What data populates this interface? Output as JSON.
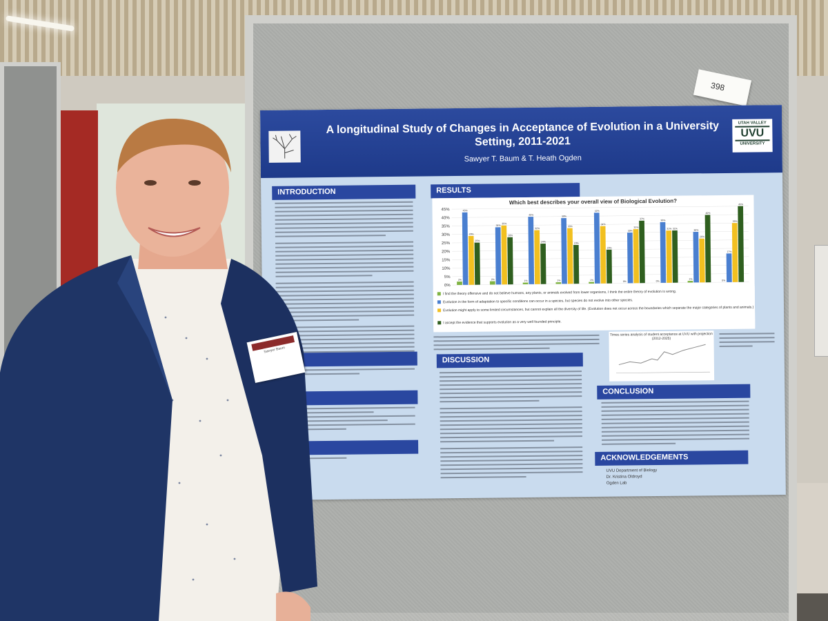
{
  "scene": {
    "description_tag_number": "398"
  },
  "poster": {
    "title": "A longitudinal Study of Changes in Acceptance of Evolution in a University Setting, 2011-2021",
    "authors": "Sawyer T. Baum & T. Heath Ogden",
    "logo": {
      "line1": "UTAH VALLEY",
      "line2": "UVU",
      "line3": "UNIVERSITY"
    },
    "sections": {
      "introduction": "INTRODUCTION",
      "results": "RESULTS",
      "objective": "TIVE",
      "methods": "HODS",
      "references": "ENCES",
      "discussion": "DISCUSSION",
      "conclusion": "CONCLUSION",
      "acknowledgements": "ACKNOWLEDGEMENTS"
    },
    "acknowledgements_items": [
      "UVU Department of Biology",
      "Dr. Kristina Oldroyd",
      "Ogden Lab"
    ],
    "fig2_title": "Times series analysis of student acceptance at UVU with projection (2012-2025)"
  },
  "nametag": {
    "text": "Sawyer Baum"
  },
  "chart_data": {
    "type": "bar",
    "title": "Which best describes your overall view of Biological Evolution?",
    "categories": [
      "2011",
      "2012",
      "2013",
      "2014",
      "2017",
      "2018",
      "2019",
      "2020",
      "2021"
    ],
    "ylim": [
      0,
      45
    ],
    "yticks": [
      "0%",
      "5%",
      "10%",
      "15%",
      "20%",
      "25%",
      "30%",
      "35%",
      "40%",
      "45%"
    ],
    "series": [
      {
        "name": "I find the theory offensive and do not believe humans, any plants, or animals evolved from lower organisms, I think the entire theory of evolution is wrong.",
        "color": "#7fb342",
        "values": [
          2,
          2,
          1,
          1,
          1,
          0,
          0,
          1,
          0
        ]
      },
      {
        "name": "Evolution in the form of adaptation to specific conditions can occur in a species, but species do not evolve into other species.",
        "color": "#4a7fd0",
        "values": [
          43,
          34,
          40,
          39,
          42,
          30,
          36,
          30,
          17
        ]
      },
      {
        "name": "Evolution might apply to some limited circumstances, but cannot explain all the diversity of life. (Evolution does not occur across the boundaries which separate the major categories of plants and animals.)",
        "color": "#f2c020",
        "values": [
          29,
          35,
          32,
          33,
          34,
          32,
          31,
          26,
          35
        ]
      },
      {
        "name": "I accept the evidence that supports evolution as a very well founded principle.",
        "color": "#2f5f1f",
        "values": [
          25,
          28,
          24,
          23,
          20,
          37,
          31,
          40,
          45
        ]
      }
    ]
  }
}
